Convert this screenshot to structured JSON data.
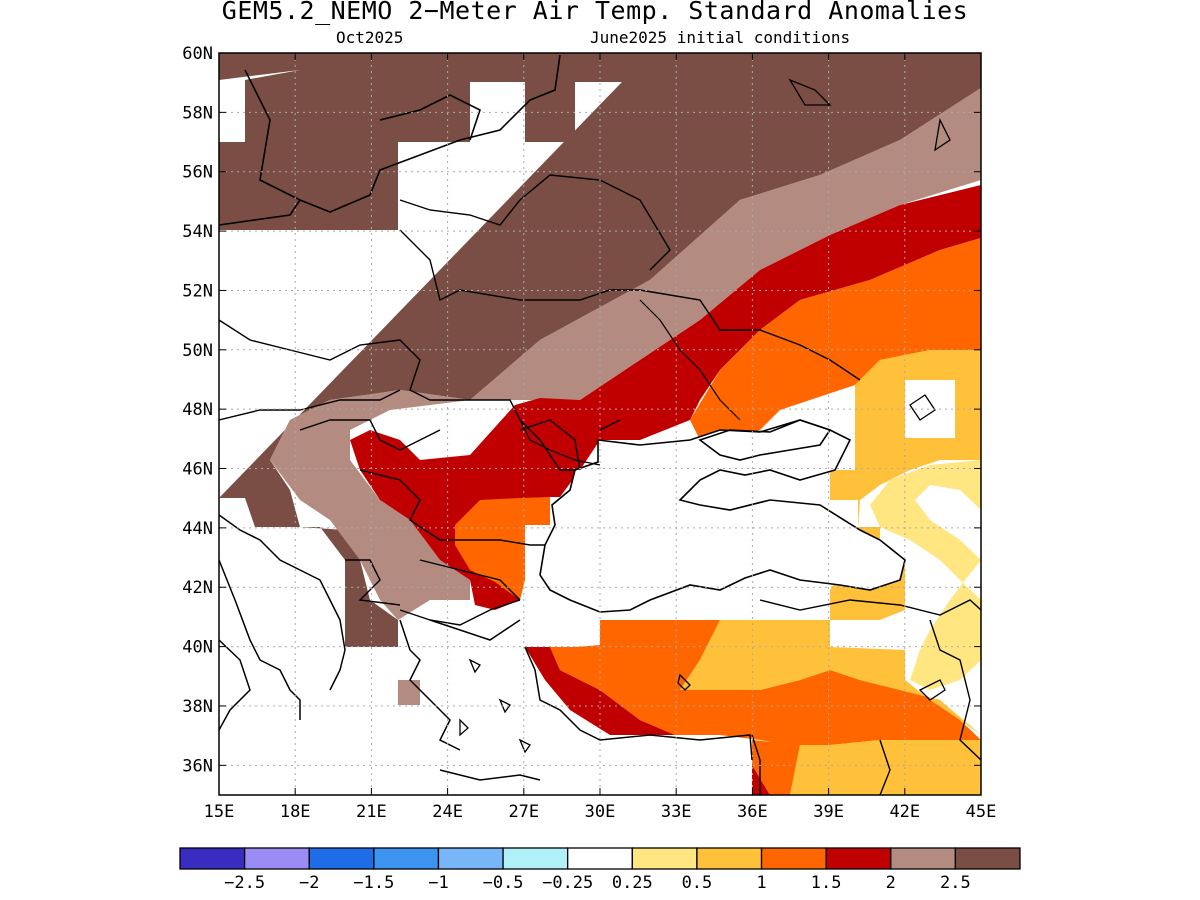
{
  "title": "GEM5.2_NEMO 2−Meter Air Temp. Standard Anomalies",
  "subtitle_left": "Oct2025",
  "subtitle_right": "June2025 initial conditions",
  "lon_labels": [
    "15E",
    "18E",
    "21E",
    "24E",
    "27E",
    "30E",
    "33E",
    "36E",
    "39E",
    "42E",
    "45E"
  ],
  "lat_labels": [
    "60N",
    "58N",
    "56N",
    "54N",
    "52N",
    "50N",
    "48N",
    "46N",
    "44N",
    "42N",
    "40N",
    "38N",
    "36N"
  ],
  "colorbar": {
    "colors": [
      "#3a2cc0",
      "#9b8cf5",
      "#1f6ce8",
      "#3d93f0",
      "#78b6f7",
      "#b0f0f8",
      "#ffffff",
      "#ffe680",
      "#ffc03a",
      "#ff6600",
      "#c00000",
      "#b38b80",
      "#7a4e44"
    ],
    "labels": [
      "−2.5",
      "−2",
      "−1.5",
      "−1",
      "−0.5",
      "−0.25",
      "0.25",
      "0.5",
      "1",
      "1.5",
      "2",
      "2.5"
    ]
  },
  "colors": {
    "anom_2_5": "#7a4e44",
    "anom_2": "#b38b80",
    "anom_1_5": "#c00000",
    "anom_1": "#ff6600",
    "anom_0_5": "#ffc03a",
    "anom_0_25": "#ffe680",
    "neutral": "#ffffff",
    "coast": "#000000",
    "grid": "#aaaaaa"
  }
}
